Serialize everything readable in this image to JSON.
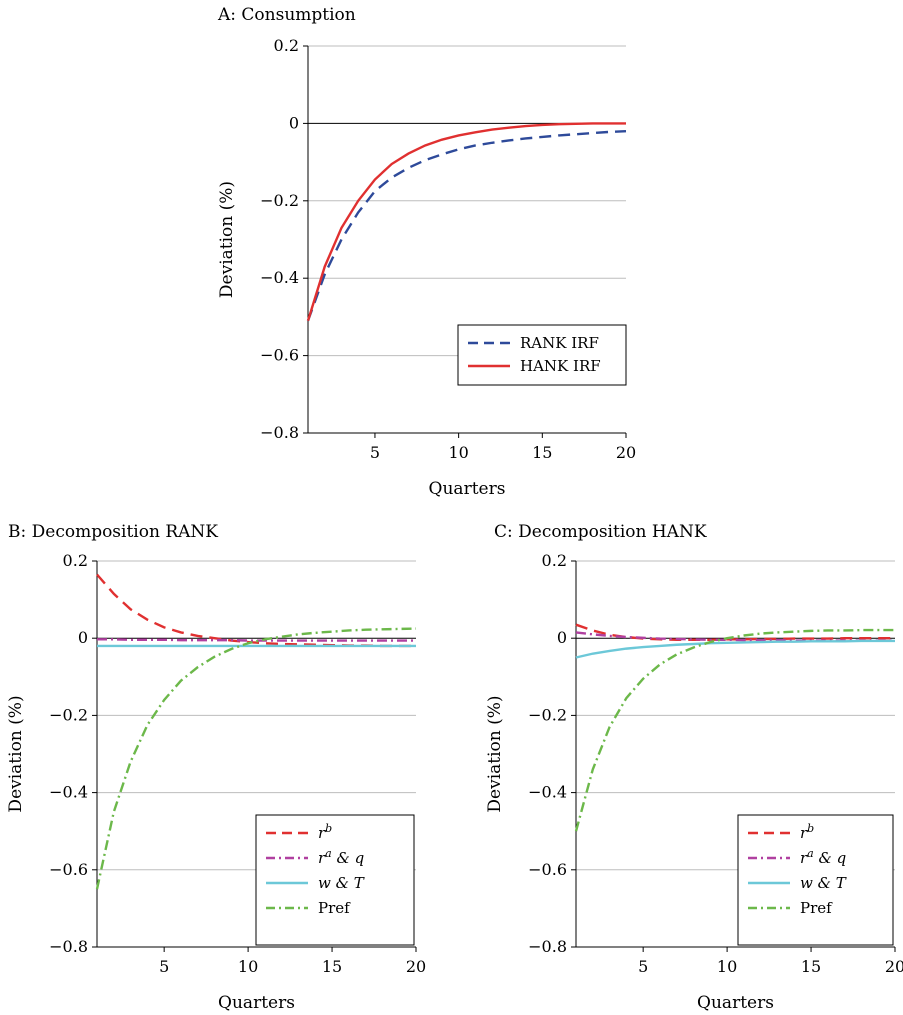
{
  "chart_data": [
    {
      "id": "A",
      "type": "line",
      "title": "A: Consumption",
      "xlabel": "Quarters",
      "ylabel": "Deviation (%)",
      "xlim": [
        1,
        20
      ],
      "ylim": [
        -0.8,
        0.2
      ],
      "xticks": [
        5,
        10,
        15,
        20
      ],
      "xtick_labels": [
        "5",
        "10",
        "15",
        "20"
      ],
      "yticks": [
        0.2,
        0,
        -0.2,
        -0.4,
        -0.6,
        -0.8
      ],
      "ytick_labels": [
        "0.2",
        "0",
        "−0.2",
        "−0.4",
        "−0.6",
        "−0.8"
      ],
      "grid": true,
      "legend_position": "lower-right",
      "x": [
        1,
        2,
        3,
        4,
        5,
        6,
        7,
        8,
        9,
        10,
        11,
        12,
        13,
        14,
        15,
        16,
        17,
        18,
        19,
        20
      ],
      "series": [
        {
          "name": "RANK IRF",
          "color": "#2e4a9a",
          "style": "dashed",
          "values": [
            -0.51,
            -0.39,
            -0.3,
            -0.23,
            -0.175,
            -0.14,
            -0.115,
            -0.095,
            -0.08,
            -0.067,
            -0.057,
            -0.05,
            -0.044,
            -0.039,
            -0.035,
            -0.031,
            -0.028,
            -0.025,
            -0.022,
            -0.02
          ]
        },
        {
          "name": "HANK IRF",
          "color": "#e03030",
          "style": "solid",
          "values": [
            -0.51,
            -0.37,
            -0.27,
            -0.2,
            -0.145,
            -0.105,
            -0.078,
            -0.057,
            -0.042,
            -0.031,
            -0.023,
            -0.016,
            -0.011,
            -0.007,
            -0.004,
            -0.002,
            -0.001,
            0,
            0,
            0
          ]
        }
      ]
    },
    {
      "id": "B",
      "type": "line",
      "title": "B: Decomposition RANK",
      "xlabel": "Quarters",
      "ylabel": "Deviation (%)",
      "xlim": [
        1,
        20
      ],
      "ylim": [
        -0.8,
        0.2
      ],
      "xticks": [
        5,
        10,
        15,
        20
      ],
      "xtick_labels": [
        "5",
        "10",
        "15",
        "20"
      ],
      "yticks": [
        0.2,
        0,
        -0.2,
        -0.4,
        -0.6,
        -0.8
      ],
      "ytick_labels": [
        "0.2",
        "0",
        "−0.2",
        "−0.4",
        "−0.6",
        "−0.8"
      ],
      "grid": true,
      "legend_position": "lower-right",
      "x": [
        1,
        2,
        3,
        4,
        5,
        6,
        7,
        8,
        9,
        10,
        11,
        12,
        13,
        14,
        15,
        16,
        17,
        18,
        19,
        20
      ],
      "series": [
        {
          "name": "r",
          "name_sup": "b",
          "color": "#e03030",
          "style": "dashed",
          "values": [
            0.165,
            0.115,
            0.075,
            0.048,
            0.028,
            0.015,
            0.006,
            0,
            -0.006,
            -0.01,
            -0.013,
            -0.015,
            -0.016,
            -0.017,
            -0.018,
            -0.019,
            -0.019,
            -0.02,
            -0.02,
            -0.02
          ]
        },
        {
          "name": "r",
          "name_sup": "a",
          "name_rest": " & q",
          "color": "#b040a0",
          "style": "dashdot",
          "values": [
            -0.003,
            -0.003,
            -0.004,
            -0.004,
            -0.004,
            -0.005,
            -0.005,
            -0.005,
            -0.005,
            -0.006,
            -0.006,
            -0.006,
            -0.006,
            -0.006,
            -0.006,
            -0.006,
            -0.006,
            -0.006,
            -0.006,
            -0.006
          ]
        },
        {
          "name": "w & T",
          "color": "#6cc8d8",
          "style": "solid",
          "values": [
            -0.02,
            -0.02,
            -0.02,
            -0.02,
            -0.02,
            -0.02,
            -0.02,
            -0.02,
            -0.02,
            -0.02,
            -0.02,
            -0.02,
            -0.02,
            -0.02,
            -0.02,
            -0.02,
            -0.02,
            -0.02,
            -0.02,
            -0.02
          ]
        },
        {
          "name": "Pref",
          "color": "#6cb84a",
          "style": "dashdot",
          "values": [
            -0.65,
            -0.45,
            -0.32,
            -0.225,
            -0.16,
            -0.11,
            -0.075,
            -0.048,
            -0.028,
            -0.013,
            -0.003,
            0.004,
            0.01,
            0.014,
            0.017,
            0.02,
            0.022,
            0.023,
            0.024,
            0.025
          ]
        }
      ]
    },
    {
      "id": "C",
      "type": "line",
      "title": "C: Decomposition HANK",
      "xlabel": "Quarters",
      "ylabel": "Deviation (%)",
      "xlim": [
        1,
        20
      ],
      "ylim": [
        -0.8,
        0.2
      ],
      "xticks": [
        5,
        10,
        15,
        20
      ],
      "xtick_labels": [
        "5",
        "10",
        "15",
        "20"
      ],
      "yticks": [
        0.2,
        0,
        -0.2,
        -0.4,
        -0.6,
        -0.8
      ],
      "ytick_labels": [
        "0.2",
        "0",
        "−0.2",
        "−0.4",
        "−0.6",
        "−0.8"
      ],
      "grid": true,
      "legend_position": "lower-right",
      "x": [
        1,
        2,
        3,
        4,
        5,
        6,
        7,
        8,
        9,
        10,
        11,
        12,
        13,
        14,
        15,
        16,
        17,
        18,
        19,
        20
      ],
      "series": [
        {
          "name": "r",
          "name_sup": "b",
          "color": "#e03030",
          "style": "dashed",
          "values": [
            0.035,
            0.02,
            0.009,
            0.003,
            -0.001,
            -0.003,
            -0.004,
            -0.004,
            -0.004,
            -0.003,
            -0.003,
            -0.002,
            -0.002,
            -0.001,
            -0.001,
            -0.001,
            0,
            0,
            0,
            0
          ]
        },
        {
          "name": "r",
          "name_sup": "a",
          "name_rest": " & q",
          "color": "#b040a0",
          "style": "dashdot",
          "values": [
            0.015,
            0.01,
            0.006,
            0.003,
            0.001,
            -0.001,
            -0.002,
            -0.003,
            -0.004,
            -0.004,
            -0.005,
            -0.005,
            -0.005,
            -0.006,
            -0.006,
            -0.006,
            -0.006,
            -0.006,
            -0.006,
            -0.006
          ]
        },
        {
          "name": "w & T",
          "color": "#6cc8d8",
          "style": "solid",
          "values": [
            -0.05,
            -0.04,
            -0.033,
            -0.027,
            -0.023,
            -0.02,
            -0.017,
            -0.015,
            -0.013,
            -0.012,
            -0.011,
            -0.01,
            -0.009,
            -0.009,
            -0.008,
            -0.008,
            -0.008,
            -0.007,
            -0.007,
            -0.007
          ]
        },
        {
          "name": "Pref",
          "color": "#6cb84a",
          "style": "dashdot",
          "values": [
            -0.5,
            -0.34,
            -0.23,
            -0.155,
            -0.105,
            -0.068,
            -0.042,
            -0.024,
            -0.01,
            0,
            0.007,
            0.012,
            0.015,
            0.017,
            0.019,
            0.02,
            0.02,
            0.021,
            0.021,
            0.021
          ]
        }
      ]
    }
  ]
}
